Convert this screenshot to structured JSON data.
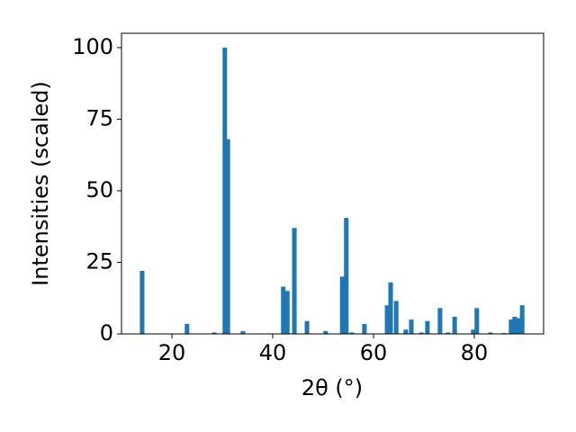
{
  "chart_data": {
    "type": "bar",
    "xlabel": "2θ (°)",
    "ylabel": "Intensities (scaled)",
    "x": [
      14.1,
      23.0,
      28.4,
      30.5,
      31.1,
      34.1,
      42.1,
      42.9,
      44.3,
      46.8,
      50.5,
      53.8,
      54.6,
      55.7,
      58.2,
      62.7,
      63.4,
      64.5,
      66.4,
      67.5,
      69.5,
      70.7,
      73.2,
      74.8,
      76.1,
      79.8,
      80.5,
      83.2,
      85.9,
      87.3,
      88.0,
      88.75,
      89.5
    ],
    "values": [
      22,
      3.5,
      0.5,
      100,
      68,
      1,
      16.5,
      15,
      37,
      4.5,
      1,
      20,
      40.5,
      0.5,
      3.5,
      10,
      18,
      11.5,
      1.5,
      5,
      0.5,
      4.5,
      9,
      0.5,
      6,
      1.5,
      9,
      0.5,
      0.3,
      5,
      6,
      5.5,
      10
    ],
    "color": "#1f77b4",
    "xlim": [
      10,
      93.75
    ],
    "xticks": [
      20,
      40,
      60,
      80
    ],
    "ylim": [
      0,
      105
    ],
    "yticks": [
      0,
      25,
      50,
      75,
      100
    ],
    "grid": false
  }
}
